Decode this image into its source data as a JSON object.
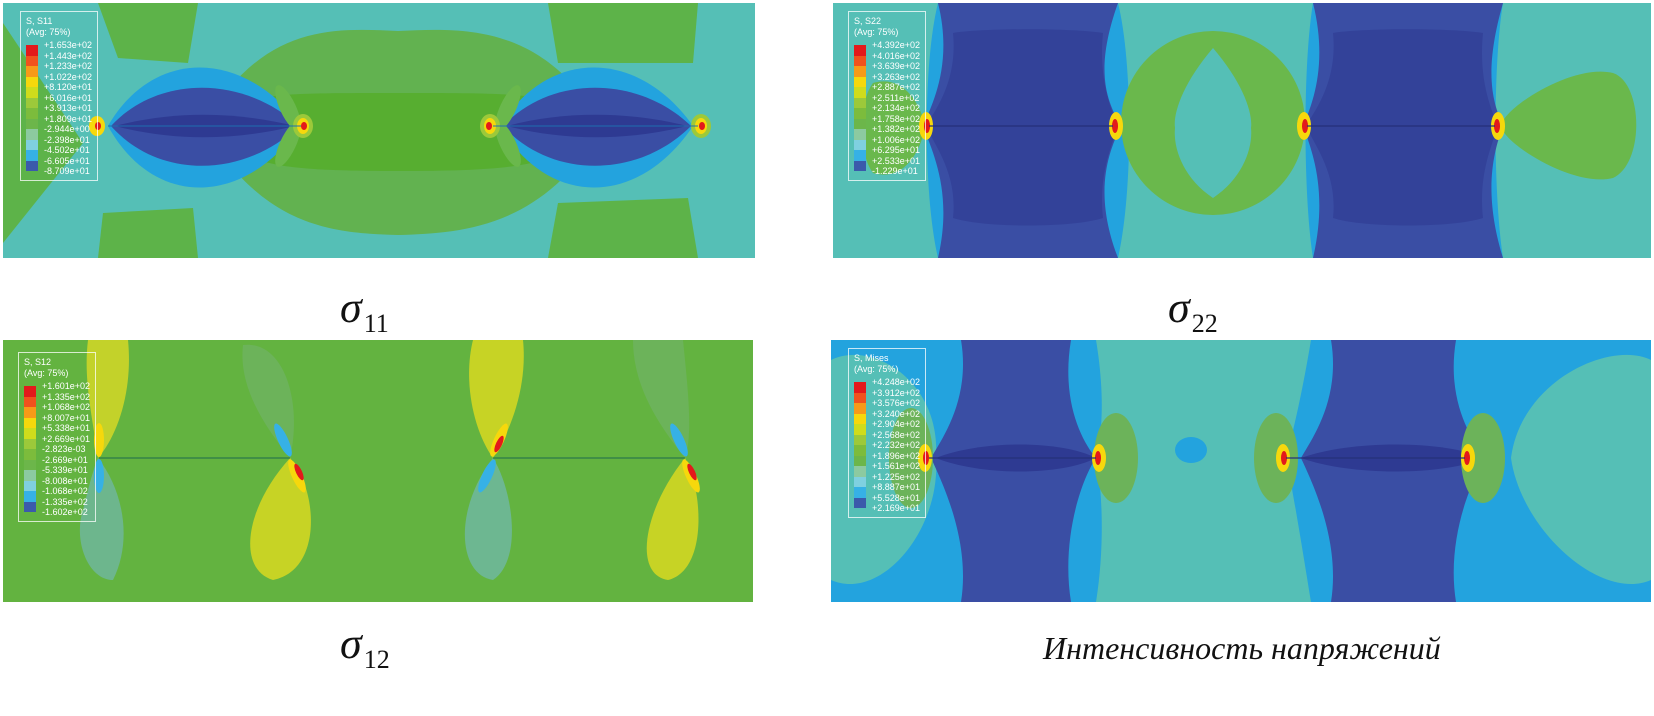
{
  "panels": [
    {
      "legend": {
        "title": "S, S11",
        "avg": "(Avg: 75%)",
        "values": [
          "+1.653e+02",
          "+1.443e+02",
          "+1.233e+02",
          "+1.022e+02",
          "+8.120e+01",
          "+6.016e+01",
          "+3.913e+01",
          "+1.809e+01",
          "-2.944e+00",
          "-2.398e+01",
          "-4.502e+01",
          "-6.605e+01",
          "-8.709e+01"
        ]
      },
      "caption": {
        "symbol": "σ",
        "subscript": "11"
      }
    },
    {
      "legend": {
        "title": "S, S22",
        "avg": "(Avg: 75%)",
        "values": [
          "+4.392e+02",
          "+4.016e+02",
          "+3.639e+02",
          "+3.263e+02",
          "+2.887e+02",
          "+2.511e+02",
          "+2.134e+02",
          "+1.758e+02",
          "+1.382e+02",
          "+1.006e+02",
          "+6.295e+01",
          "+2.533e+01",
          "-1.229e+01"
        ]
      },
      "caption": {
        "symbol": "σ",
        "subscript": "22"
      }
    },
    {
      "legend": {
        "title": "S, S12",
        "avg": "(Avg: 75%)",
        "values": [
          "+1.601e+02",
          "+1.335e+02",
          "+1.068e+02",
          "+8.007e+01",
          "+5.338e+01",
          "+2.669e+01",
          "-2.823e-03",
          "-2.669e+01",
          "-5.339e+01",
          "-8.008e+01",
          "-1.068e+02",
          "-1.335e+02",
          "-1.602e+02"
        ]
      },
      "caption": {
        "symbol": "σ",
        "subscript": "12"
      }
    },
    {
      "legend": {
        "title": "S, Mises",
        "avg": "(Avg: 75%)",
        "values": [
          "+4.248e+02",
          "+3.912e+02",
          "+3.576e+02",
          "+3.240e+02",
          "+2.904e+02",
          "+2.568e+02",
          "+2.232e+02",
          "+1.896e+02",
          "+1.561e+02",
          "+1.225e+02",
          "+8.887e+01",
          "+5.528e+01",
          "+2.169e+01"
        ]
      },
      "caption": {
        "text": "Интенсивность напряжений"
      }
    }
  ],
  "colormap": [
    "#e3191b",
    "#f0521d",
    "#f79a18",
    "#f6d80c",
    "#cfdc1c",
    "#9cc93a",
    "#7cbc3c",
    "#6cb64a",
    "#8ccaa0",
    "#7fd0e0",
    "#36b1e6",
    "#3b5aab",
    "#2f3b94"
  ],
  "colors": {
    "teal": "#55bfb6",
    "green": "#5db349",
    "light_green": "#6ab84c",
    "cyan_blue": "#23a3de",
    "dark_blue": "#3a4ea4",
    "deep_blue": "#2e3a92",
    "yellow": "#d6d51f",
    "red": "#e3191b"
  }
}
